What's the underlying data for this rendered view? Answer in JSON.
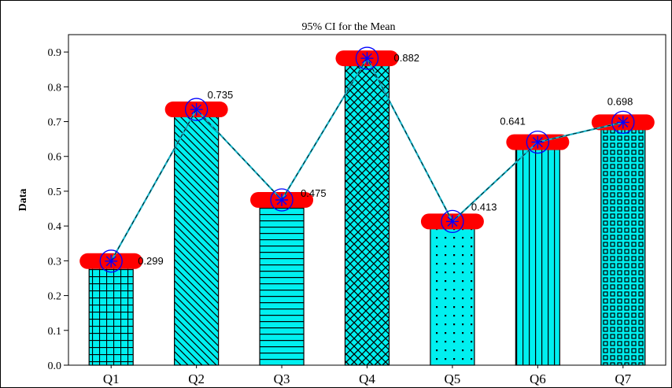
{
  "chart_data": {
    "type": "bar",
    "title": "95% CI for the Mean",
    "xlabel": "",
    "ylabel": "Data",
    "categories": [
      "Q1",
      "Q2",
      "Q3",
      "Q4",
      "Q5",
      "Q6",
      "Q7"
    ],
    "values": [
      0.299,
      0.735,
      0.475,
      0.882,
      0.413,
      0.641,
      0.698
    ],
    "value_labels": [
      "0.299",
      "0.735",
      "0.475",
      "0.882",
      "0.413",
      "0.641",
      "0.698"
    ],
    "bar_tops": [
      0.28,
      0.715,
      0.455,
      0.862,
      0.393,
      0.621,
      0.678
    ],
    "ylim": [
      0,
      0.95
    ],
    "yticks": [
      0.0,
      0.1,
      0.2,
      0.3,
      0.4,
      0.5,
      0.6,
      0.7,
      0.8,
      0.9
    ],
    "ytick_labels": [
      "0.0",
      "0.1",
      "0.2",
      "0.3",
      "0.4",
      "0.5",
      "0.6",
      "0.7",
      "0.8",
      "0.9"
    ],
    "patterns": [
      "grid",
      "diagonal-down",
      "horizontal",
      "crosshatch",
      "dots",
      "vertical",
      "squares"
    ],
    "grid": false,
    "legend": "none",
    "mean_line": true,
    "colors": {
      "bar_fill": "#00f0f0",
      "pattern": "#000000",
      "ci_band": "#ff0000",
      "marker": "#0000ff",
      "line": "#19b3c8"
    }
  }
}
